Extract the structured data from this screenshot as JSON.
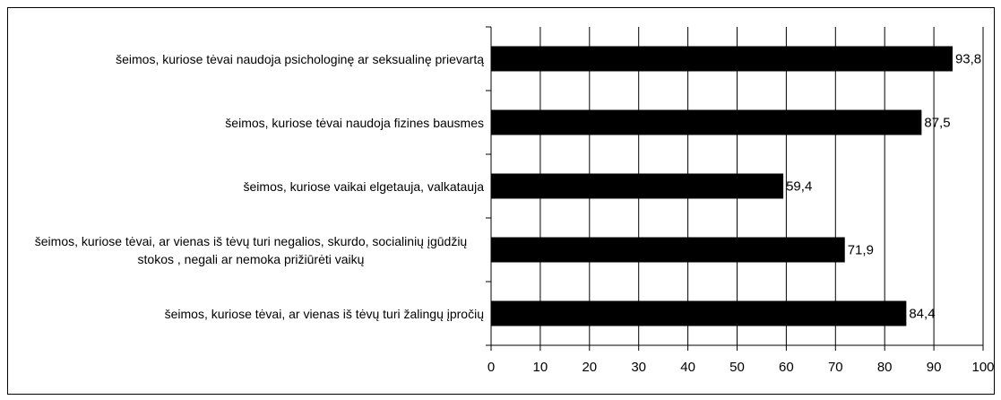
{
  "chart_data": {
    "type": "bar",
    "orientation": "horizontal",
    "categories": [
      "šeimos, kuriose tėvai naudoja psichologinę ar seksualinę prievartą",
      "šeimos, kuriose tėvai naudoja fizines bausmes",
      "šeimos, kuriose vaikai elgetauja, valkatauja",
      "šeimos, kuriose tėvai, ar vienas iš tėvų turi negalios, skurdo, socialinių įgūdžių stokos , negali ar nemoka prižiūrėti vaikų",
      "šeimos, kuriose tėvai, ar vienas iš tėvų turi žalingų įpročių"
    ],
    "values": [
      93.8,
      87.5,
      59.4,
      71.9,
      84.4
    ],
    "value_labels": [
      "93,8",
      "87,5",
      "59,4",
      "71,9",
      "84,4"
    ],
    "color": "#000000",
    "xlim": [
      0,
      100
    ],
    "xticks": [
      0,
      10,
      20,
      30,
      40,
      50,
      60,
      70,
      80,
      90,
      100
    ],
    "grid": true
  }
}
